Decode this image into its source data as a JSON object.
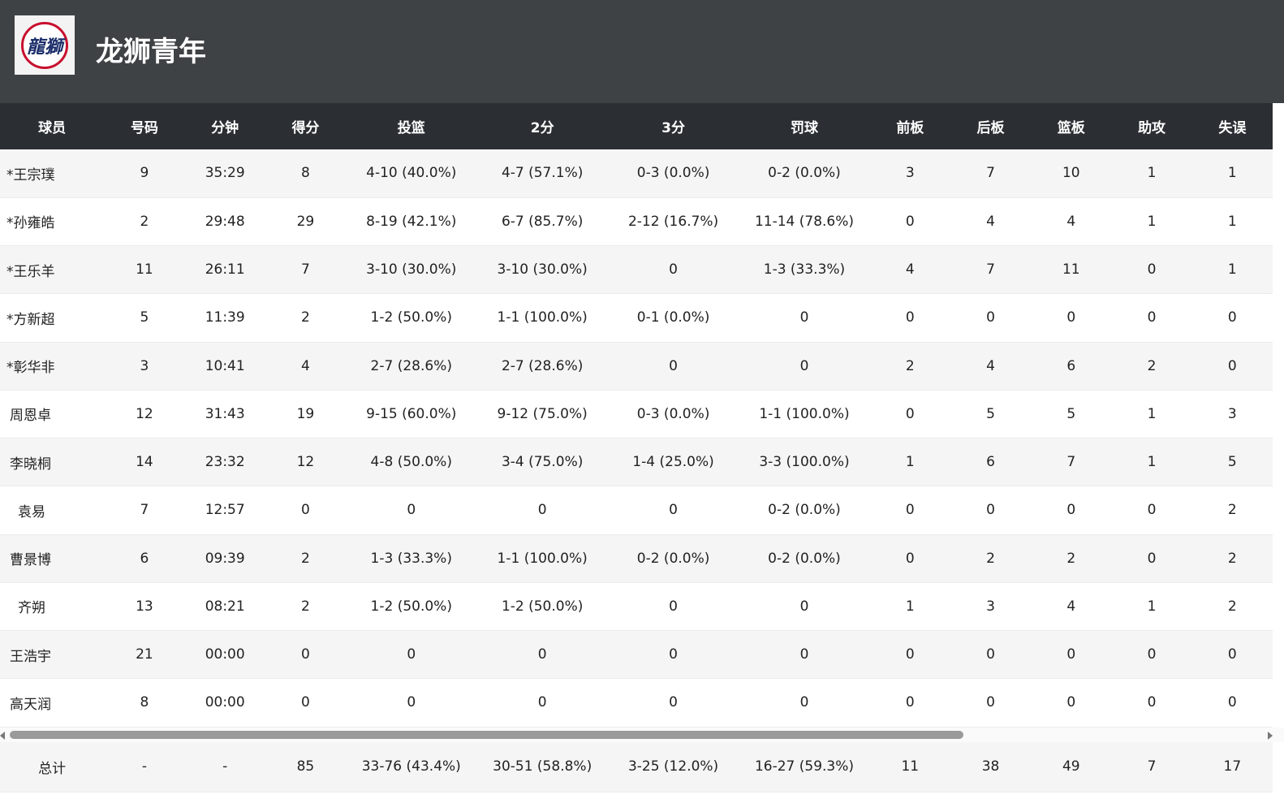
{
  "team": {
    "name": "龙狮青年",
    "logo_text": "龍獅"
  },
  "columns": [
    "球员",
    "号码",
    "分钟",
    "得分",
    "投篮",
    "2分",
    "3分",
    "罚球",
    "前板",
    "后板",
    "篮板",
    "助攻",
    "失误"
  ],
  "rows": [
    [
      "*王宗璞",
      "9",
      "35:29",
      "8",
      "4-10 (40.0%)",
      "4-7 (57.1%)",
      "0-3 (0.0%)",
      "0-2 (0.0%)",
      "3",
      "7",
      "10",
      "1",
      "1"
    ],
    [
      "*孙雍皓",
      "2",
      "29:48",
      "29",
      "8-19 (42.1%)",
      "6-7 (85.7%)",
      "2-12 (16.7%)",
      "11-14 (78.6%)",
      "0",
      "4",
      "4",
      "1",
      "1"
    ],
    [
      "*王乐羊",
      "11",
      "26:11",
      "7",
      "3-10 (30.0%)",
      "3-10 (30.0%)",
      "0",
      "1-3 (33.3%)",
      "4",
      "7",
      "11",
      "0",
      "1"
    ],
    [
      "*方新超",
      "5",
      "11:39",
      "2",
      "1-2 (50.0%)",
      "1-1 (100.0%)",
      "0-1 (0.0%)",
      "0",
      "0",
      "0",
      "0",
      "0",
      "0"
    ],
    [
      "*彰华非",
      "3",
      "10:41",
      "4",
      "2-7 (28.6%)",
      "2-7 (28.6%)",
      "0",
      "0",
      "2",
      "4",
      "6",
      "2",
      "0"
    ],
    [
      "周恩卓",
      "12",
      "31:43",
      "19",
      "9-15 (60.0%)",
      "9-12 (75.0%)",
      "0-3 (0.0%)",
      "1-1 (100.0%)",
      "0",
      "5",
      "5",
      "1",
      "3"
    ],
    [
      "李晓桐",
      "14",
      "23:32",
      "12",
      "4-8 (50.0%)",
      "3-4 (75.0%)",
      "1-4 (25.0%)",
      "3-3 (100.0%)",
      "1",
      "6",
      "7",
      "1",
      "5"
    ],
    [
      "袁易",
      "7",
      "12:57",
      "0",
      "0",
      "0",
      "0",
      "0-2 (0.0%)",
      "0",
      "0",
      "0",
      "0",
      "2"
    ],
    [
      "曹景博",
      "6",
      "09:39",
      "2",
      "1-3 (33.3%)",
      "1-1 (100.0%)",
      "0-2 (0.0%)",
      "0-2 (0.0%)",
      "0",
      "2",
      "2",
      "0",
      "2"
    ],
    [
      "齐朔",
      "13",
      "08:21",
      "2",
      "1-2 (50.0%)",
      "1-2 (50.0%)",
      "0",
      "0",
      "1",
      "3",
      "4",
      "1",
      "2"
    ],
    [
      "王浩宇",
      "21",
      "00:00",
      "0",
      "0",
      "0",
      "0",
      "0",
      "0",
      "0",
      "0",
      "0",
      "0"
    ],
    [
      "高天润",
      "8",
      "00:00",
      "0",
      "0",
      "0",
      "0",
      "0",
      "0",
      "0",
      "0",
      "0",
      "0"
    ]
  ],
  "totals": [
    "总计",
    "-",
    "-",
    "85",
    "33-76 (43.4%)",
    "30-51 (58.8%)",
    "3-25 (12.0%)",
    "16-27 (59.3%)",
    "11",
    "38",
    "49",
    "7",
    "17"
  ]
}
